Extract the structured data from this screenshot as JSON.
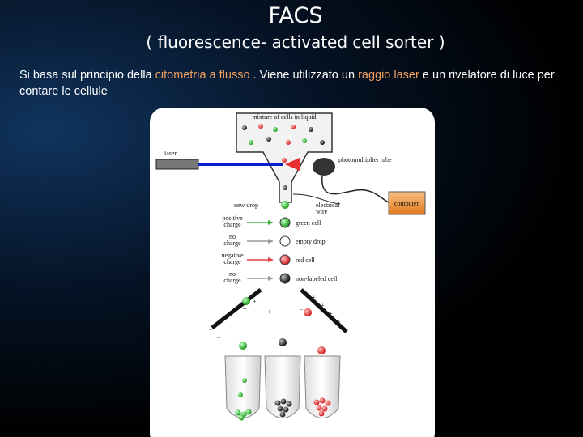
{
  "slide": {
    "title": "FACS",
    "subtitle": "( fluorescence- activated cell sorter )",
    "description": {
      "parts": [
        {
          "text": "Si basa sul principio della ",
          "highlight": false
        },
        {
          "text": "citometria a flusso",
          "highlight": true
        },
        {
          "text": " . Viene utilizzato un ",
          "highlight": false
        },
        {
          "text": "raggio laser",
          "highlight": true
        },
        {
          "text": " e un rivelatore di luce per contare le cellule",
          "highlight": false
        }
      ]
    },
    "diagram": {
      "chamber": "mixture of cells in liquid",
      "laser": "laser",
      "detector": "photomultiplier tube",
      "computer": "computer",
      "new_drop": "new drop",
      "wire": "electrical wire",
      "charges": [
        "positive charge",
        "no charge",
        "negative charge",
        "no charge"
      ],
      "drops": [
        "green cell",
        "empty drop",
        "red cell",
        "non-labeled cell"
      ]
    }
  }
}
